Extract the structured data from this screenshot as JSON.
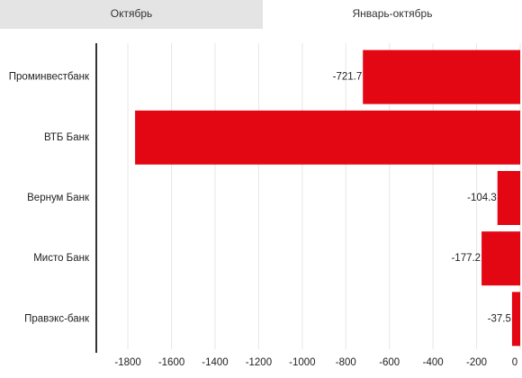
{
  "tabs": [
    "Октябрь",
    "Январь-октябрь"
  ],
  "chart_data": {
    "type": "barh",
    "categories": [
      "Проминвестбанк",
      "ВТБ Банк",
      "Вернум Банк",
      "Мисто Банк",
      "Правэкс-банк"
    ],
    "values": [
      -721.7,
      -1767,
      -104.3,
      -177.2,
      -37.5
    ],
    "value_labels": [
      "-721.7",
      null,
      "-104.3",
      "-177.2",
      "-37.5"
    ],
    "color": "#e30613",
    "xlim": [
      -1945,
      0
    ],
    "xticks": [
      -1800,
      -1600,
      -1400,
      -1200,
      -1000,
      -800,
      -600,
      -400,
      -200,
      0
    ],
    "grid": true
  }
}
